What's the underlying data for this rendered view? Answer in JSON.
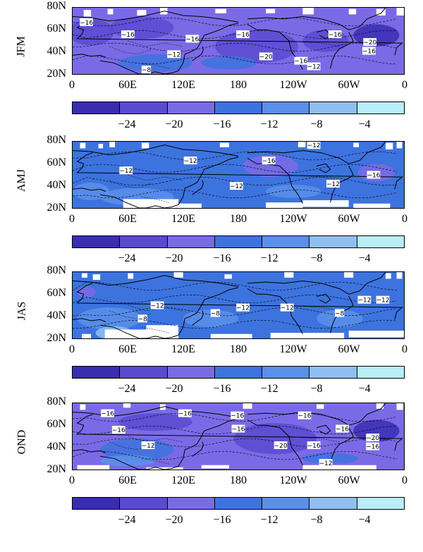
{
  "latitude_labels": [
    "80N",
    "60N",
    "40N",
    "20N"
  ],
  "longitude_labels": [
    "0",
    "60E",
    "120E",
    "180",
    "120W",
    "60W",
    "0"
  ],
  "colorbar": {
    "colors": [
      "#3a2db0",
      "#5a4ad0",
      "#7b6ae6",
      "#3d73de",
      "#5a90ea",
      "#8fbff1",
      "#b8eef8"
    ],
    "tick_labels": [
      "−24",
      "−20",
      "−16",
      "−12",
      "−8",
      "−4"
    ]
  },
  "land_color": "#ffffff",
  "coastline_color": "#000000",
  "panels": [
    {
      "season": "JFM",
      "base_color": "#7b6ae6",
      "contour_labels": [
        {
          "text": "−16",
          "lon": 15,
          "lat": 67
        },
        {
          "text": "−16",
          "lon": 60,
          "lat": 56
        },
        {
          "text": "−16",
          "lon": 130,
          "lat": 52
        },
        {
          "text": "−16",
          "lon": 185,
          "lat": 56
        },
        {
          "text": "−16",
          "lon": 285,
          "lat": 56
        },
        {
          "text": "−12",
          "lon": 110,
          "lat": 38
        },
        {
          "text": "−8",
          "lon": 80,
          "lat": 24
        },
        {
          "text": "−20",
          "lon": 210,
          "lat": 36
        },
        {
          "text": "−16",
          "lon": 248,
          "lat": 32
        },
        {
          "text": "−12",
          "lon": 262,
          "lat": 27
        },
        {
          "text": "−20",
          "lon": 323,
          "lat": 49
        },
        {
          "text": "−16",
          "lon": 322,
          "lat": 41
        }
      ]
    },
    {
      "season": "AMJ",
      "base_color": "#3d73de",
      "contour_labels": [
        {
          "text": "−12",
          "lon": 58,
          "lat": 54
        },
        {
          "text": "−12",
          "lon": 128,
          "lat": 63
        },
        {
          "text": "−12",
          "lon": 262,
          "lat": 77
        },
        {
          "text": "−16",
          "lon": 213,
          "lat": 63
        },
        {
          "text": "−12",
          "lon": 178,
          "lat": 40
        },
        {
          "text": "−12",
          "lon": 283,
          "lat": 42
        },
        {
          "text": "−16",
          "lon": 327,
          "lat": 50
        }
      ]
    },
    {
      "season": "JAS",
      "base_color": "#3d73de",
      "contour_labels": [
        {
          "text": "−12",
          "lon": 92,
          "lat": 50
        },
        {
          "text": "−8",
          "lon": 76,
          "lat": 38
        },
        {
          "text": "−8",
          "lon": 155,
          "lat": 43
        },
        {
          "text": "−12",
          "lon": 185,
          "lat": 48
        },
        {
          "text": "−12",
          "lon": 233,
          "lat": 48
        },
        {
          "text": "−8",
          "lon": 290,
          "lat": 43
        },
        {
          "text": "−12",
          "lon": 317,
          "lat": 55
        },
        {
          "text": "−12",
          "lon": 337,
          "lat": 55
        }
      ]
    },
    {
      "season": "OND",
      "base_color": "#7b6ae6",
      "contour_labels": [
        {
          "text": "−16",
          "lon": 38,
          "lat": 71
        },
        {
          "text": "−16",
          "lon": 122,
          "lat": 71
        },
        {
          "text": "−16",
          "lon": 179,
          "lat": 69
        },
        {
          "text": "−16",
          "lon": 252,
          "lat": 69
        },
        {
          "text": "−16",
          "lon": 50,
          "lat": 56
        },
        {
          "text": "−12",
          "lon": 82,
          "lat": 42
        },
        {
          "text": "−16",
          "lon": 180,
          "lat": 57
        },
        {
          "text": "−20",
          "lon": 226,
          "lat": 42
        },
        {
          "text": "−16",
          "lon": 262,
          "lat": 42
        },
        {
          "text": "−16",
          "lon": 293,
          "lat": 57
        },
        {
          "text": "−20",
          "lon": 326,
          "lat": 49
        },
        {
          "text": "−16",
          "lon": 326,
          "lat": 41
        },
        {
          "text": "−12",
          "lon": 275,
          "lat": 26
        }
      ]
    }
  ]
}
